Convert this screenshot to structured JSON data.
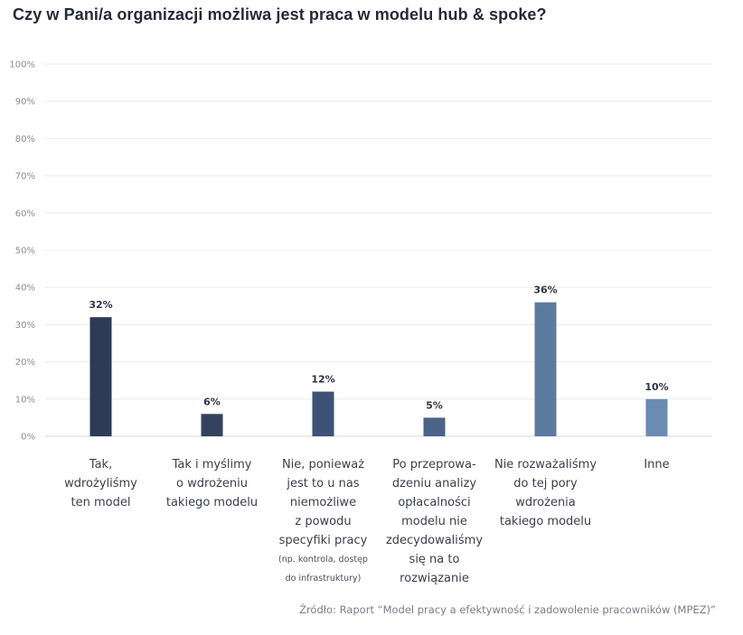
{
  "chart_data": {
    "type": "bar",
    "title": "Czy w Pani/a organizacji możliwa jest praca w modelu hub & spoke?",
    "categories": [
      "Tak,\nwdrożyliśmy\nten model",
      "Tak i myślimy\no wdrożeniu\ntakiego modelu",
      "Nie, ponieważ\njest to u nas\nniemożliwe\nz powodu\nspecyfiki pracy",
      "Po przeprowa-\ndzeniu analizy\nopłacalności\nmodelu nie\nzdecydowaliśmy\nsię na to\nrozwiązanie",
      "Nie rozważaliśmy\ndo tej pory\nwdrożenia\ntakiego modelu",
      "Inne"
    ],
    "category_notes": [
      "",
      "",
      "(np. kontrola, dostęp\ndo infrastruktury)",
      "",
      "",
      ""
    ],
    "values": [
      32,
      6,
      12,
      5,
      36,
      10
    ],
    "value_labels": [
      "32%",
      "6%",
      "12%",
      "5%",
      "36%",
      "10%"
    ],
    "ylim": [
      0,
      100
    ],
    "yticks": [
      0,
      10,
      20,
      30,
      40,
      50,
      60,
      70,
      80,
      90,
      100
    ],
    "ytick_labels": [
      "0%",
      "10%",
      "20%",
      "30%",
      "40%",
      "50%",
      "60%",
      "70%",
      "80%",
      "90%",
      "100%"
    ],
    "bar_colors": [
      "#2e3b56",
      "#34425f",
      "#3d5275",
      "#4a6386",
      "#5b7a9f",
      "#6a8bb2"
    ],
    "grid": true,
    "xlabel": "",
    "ylabel": ""
  },
  "source": "Źródło: Raport “Model pracy a efektywność i zadowolenie pracowników (MPEZ)”"
}
